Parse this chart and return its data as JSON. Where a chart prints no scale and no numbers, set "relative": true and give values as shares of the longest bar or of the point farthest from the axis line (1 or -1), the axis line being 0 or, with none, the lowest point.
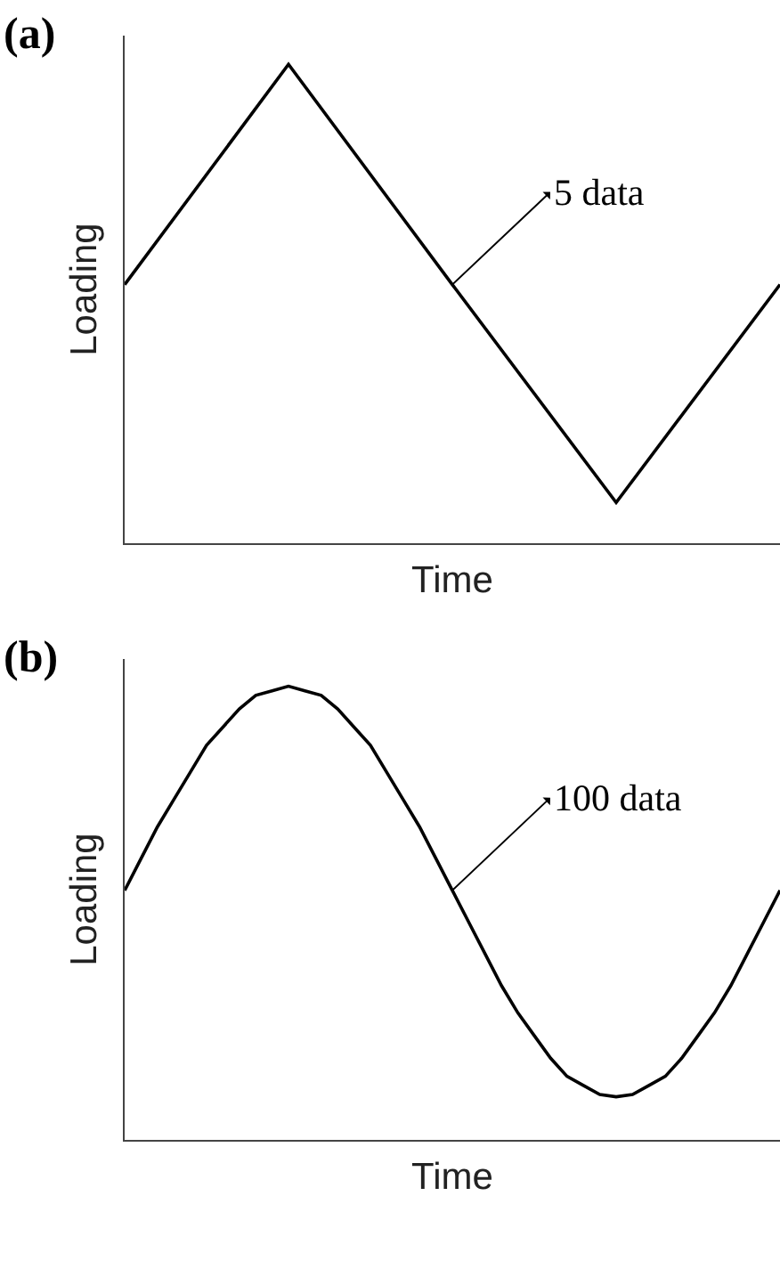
{
  "chart_data": [
    {
      "type": "line",
      "title": "(a)",
      "xlabel": "Time",
      "ylabel": "Loading",
      "relative": true,
      "categories": [
        null,
        null,
        null,
        null,
        null
      ],
      "color": "#000000",
      "line_style": "solid",
      "marker": "none",
      "annotations": [
        "5 data"
      ],
      "values": [
        0.54,
        1.0,
        0.54,
        0.085,
        0.54
      ]
    },
    {
      "type": "line",
      "title": "(b)",
      "xlabel": "Time",
      "ylabel": "Loading",
      "relative": true,
      "categories": [
        null,
        null,
        null,
        null,
        null,
        null,
        null,
        null,
        null,
        null,
        null,
        null,
        null,
        null,
        null,
        null,
        null,
        null,
        null,
        null,
        null,
        null,
        null,
        null,
        null,
        null,
        null,
        null,
        null,
        null,
        null,
        null,
        null,
        null,
        null,
        null,
        null,
        null,
        null,
        null,
        null
      ],
      "color": "#000000",
      "line_style": "solid",
      "marker": "none",
      "annotations": [
        "100 data"
      ],
      "values": [
        0.55,
        0.62,
        0.69,
        0.75,
        0.81,
        0.87,
        0.91,
        0.95,
        0.98,
        0.99,
        1.0,
        0.99,
        0.98,
        0.95,
        0.91,
        0.87,
        0.81,
        0.75,
        0.69,
        0.62,
        0.55,
        0.48,
        0.41,
        0.34,
        0.28,
        0.23,
        0.18,
        0.14,
        0.12,
        0.1,
        0.095,
        0.1,
        0.12,
        0.14,
        0.18,
        0.23,
        0.28,
        0.34,
        0.41,
        0.48,
        0.55
      ]
    }
  ]
}
